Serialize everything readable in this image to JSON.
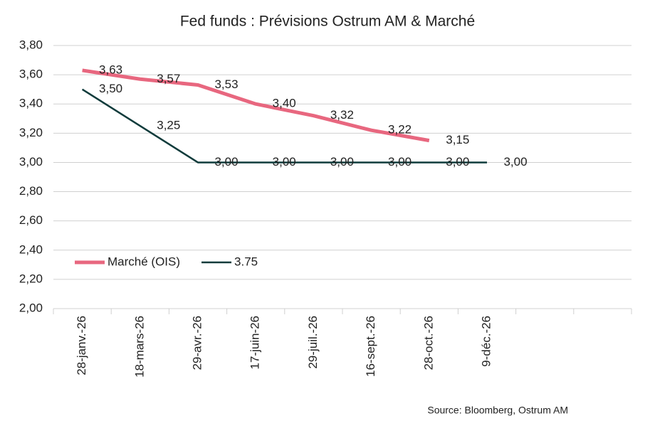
{
  "chart_data": {
    "type": "line",
    "title": "Fed funds : Prévisions Ostrum AM & Marché",
    "categories": [
      "28-janv.-26",
      "18-mars-26",
      "29-avr.-26",
      "17-juin-26",
      "29-juil.-26",
      "16-sept.-26",
      "28-oct.-26",
      "9-déc.-26",
      null,
      null
    ],
    "series": [
      {
        "name": "Marché (OIS)",
        "color": "#e8677f",
        "values": [
          3.63,
          3.57,
          3.53,
          3.4,
          3.32,
          3.22,
          3.15,
          null,
          null,
          null
        ],
        "value_labels": [
          "3,63",
          "3,57",
          "3,53",
          "3,40",
          "3,32",
          "3,22",
          "3,15",
          null,
          null,
          null
        ]
      },
      {
        "name": "3.75",
        "color": "#0f3b3b",
        "values": [
          3.5,
          3.25,
          3.0,
          3.0,
          3.0,
          3.0,
          3.0,
          3.0,
          null,
          null
        ],
        "value_labels": [
          "3,50",
          "3,25",
          "3,00",
          "3,00",
          "3,00",
          "3,00",
          "3,00",
          "3,00",
          null,
          null
        ]
      }
    ],
    "ylim": [
      2.0,
      3.8
    ],
    "yticks": [
      {
        "value": 2.0,
        "label": "2,00"
      },
      {
        "value": 2.2,
        "label": "2,20"
      },
      {
        "value": 2.4,
        "label": "2,40"
      },
      {
        "value": 2.6,
        "label": "2,60"
      },
      {
        "value": 2.8,
        "label": "2,80"
      },
      {
        "value": 3.0,
        "label": "3,00"
      },
      {
        "value": 3.2,
        "label": "3,20"
      },
      {
        "value": 3.4,
        "label": "3,40"
      },
      {
        "value": 3.6,
        "label": "3,60"
      },
      {
        "value": 3.8,
        "label": "3,80"
      }
    ],
    "grid": true,
    "legend": "left",
    "source": "Source: Bloomberg,  Ostrum AM"
  }
}
